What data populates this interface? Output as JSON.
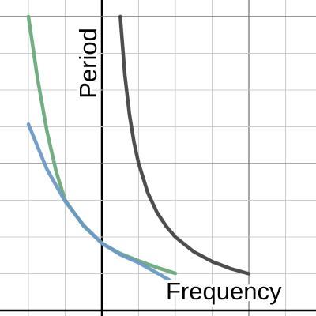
{
  "chart_data": {
    "type": "line",
    "x_label": "Frequency",
    "y_label": "Period",
    "xlim": [
      -2.774,
      5.828
    ],
    "ylim": [
      -0.15,
      8.45
    ],
    "xticks": [
      -2,
      -1,
      0,
      1,
      2,
      3,
      4,
      5
    ],
    "yticks": [
      0,
      1,
      2,
      3,
      4,
      5,
      6,
      7,
      8
    ],
    "grid": true,
    "series": [
      {
        "name": null,
        "color": "#6aaa78",
        "x": [
          -2,
          -1.75,
          -1.5,
          -1.25,
          -1,
          -0.5,
          0,
          0.5,
          1,
          1.5,
          2
        ],
        "values": [
          8.0,
          6.3,
          4.9,
          3.8,
          3.0,
          2.3,
          1.83,
          1.55,
          1.35,
          1.17,
          1.01
        ]
      },
      {
        "name": null,
        "color": "#6a99c8",
        "x": [
          -2,
          -1.5,
          -1,
          -0.5,
          0,
          0.5,
          1,
          1.5,
          1.85
        ],
        "values": [
          5.07,
          3.85,
          2.97,
          2.32,
          1.83,
          1.52,
          1.3,
          1.02,
          0.82
        ]
      },
      {
        "name": null,
        "color": "#444444",
        "x": [
          0.5,
          0.625,
          0.75,
          0.875,
          1,
          1.25,
          1.5,
          1.75,
          2,
          2.5,
          3,
          3.5,
          4
        ],
        "values": [
          8,
          6.4,
          5.33,
          4.57,
          4,
          3.2,
          2.67,
          2.29,
          2,
          1.6,
          1.33,
          1.14,
          1
        ]
      }
    ]
  }
}
